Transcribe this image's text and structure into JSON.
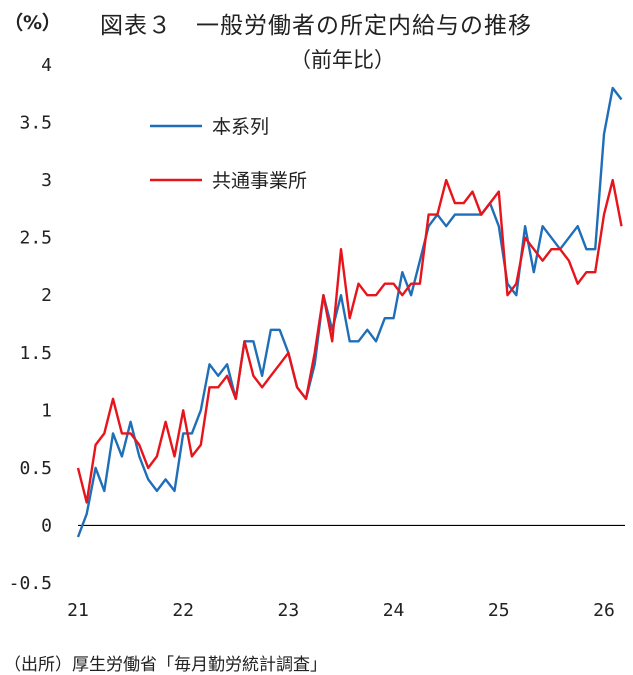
{
  "header": {
    "unit_label": "（%）",
    "title": "図表３　一般労働者の所定内給与の推移",
    "subtitle": "（前年比）"
  },
  "footer": {
    "source": "（出所）厚生労働省「毎月勤労統計調査」"
  },
  "chart_data": {
    "type": "line",
    "title": "図表３　一般労働者の所定内給与の推移",
    "subtitle": "（前年比）",
    "ylabel": "（%）",
    "ylim": [
      -0.5,
      4
    ],
    "yticks": [
      -0.5,
      0,
      0.5,
      1,
      1.5,
      2,
      2.5,
      3,
      3.5,
      4
    ],
    "ytick_labels": [
      "-0.5",
      "0",
      "0.5",
      "1",
      "1.5",
      "2",
      "2.5",
      "3",
      "3.5",
      "4"
    ],
    "xlim": [
      21.0,
      26.2
    ],
    "xticks": [
      21,
      22,
      23,
      24,
      25,
      26
    ],
    "xtick_labels": [
      "21",
      "22",
      "23",
      "24",
      "25",
      "26"
    ],
    "grid": false,
    "legend_position": "top-left",
    "x": [
      21.0,
      21.083,
      21.167,
      21.25,
      21.333,
      21.417,
      21.5,
      21.583,
      21.667,
      21.75,
      21.833,
      21.917,
      22.0,
      22.083,
      22.167,
      22.25,
      22.333,
      22.417,
      22.5,
      22.583,
      22.667,
      22.75,
      22.833,
      22.917,
      23.0,
      23.083,
      23.167,
      23.25,
      23.333,
      23.417,
      23.5,
      23.583,
      23.667,
      23.75,
      23.833,
      23.917,
      24.0,
      24.083,
      24.167,
      24.25,
      24.333,
      24.417,
      24.5,
      24.583,
      24.667,
      24.75,
      24.833,
      24.917,
      25.0,
      25.083,
      25.167,
      25.25,
      25.333,
      25.417,
      25.5,
      25.583,
      25.667,
      25.75,
      25.833,
      25.917,
      26.0,
      26.083,
      26.167
    ],
    "series": [
      {
        "name": "本系列",
        "color": "#1f6fb8",
        "values": [
          -0.1,
          0.1,
          0.5,
          0.3,
          0.8,
          0.6,
          0.9,
          0.6,
          0.4,
          0.3,
          0.4,
          0.3,
          0.8,
          0.8,
          1.0,
          1.4,
          1.3,
          1.4,
          1.1,
          1.6,
          1.6,
          1.3,
          1.7,
          1.7,
          1.5,
          1.2,
          1.1,
          1.4,
          2.0,
          1.7,
          2.0,
          1.6,
          1.6,
          1.7,
          1.6,
          1.8,
          1.8,
          2.2,
          2.0,
          2.3,
          2.6,
          2.7,
          2.6,
          2.7,
          2.7,
          2.7,
          2.7,
          2.8,
          2.6,
          2.1,
          2.0,
          2.6,
          2.2,
          2.6,
          2.5,
          2.4,
          2.5,
          2.6,
          2.4,
          2.4,
          3.4,
          3.8,
          3.7
        ]
      },
      {
        "name": "共通事業所",
        "color": "#e8141c",
        "values": [
          0.5,
          0.2,
          0.7,
          0.8,
          1.1,
          0.8,
          0.8,
          0.7,
          0.5,
          0.6,
          0.9,
          0.6,
          1.0,
          0.6,
          0.7,
          1.2,
          1.2,
          1.3,
          1.1,
          1.6,
          1.3,
          1.2,
          1.3,
          1.4,
          1.5,
          1.2,
          1.1,
          1.5,
          2.0,
          1.6,
          2.4,
          1.8,
          2.1,
          2.0,
          2.0,
          2.1,
          2.1,
          2.0,
          2.1,
          2.1,
          2.7,
          2.7,
          3.0,
          2.8,
          2.8,
          2.9,
          2.7,
          2.8,
          2.9,
          2.0,
          2.1,
          2.5,
          2.4,
          2.3,
          2.4,
          2.4,
          2.3,
          2.1,
          2.2,
          2.2,
          2.7,
          3.0,
          2.6
        ]
      }
    ]
  }
}
